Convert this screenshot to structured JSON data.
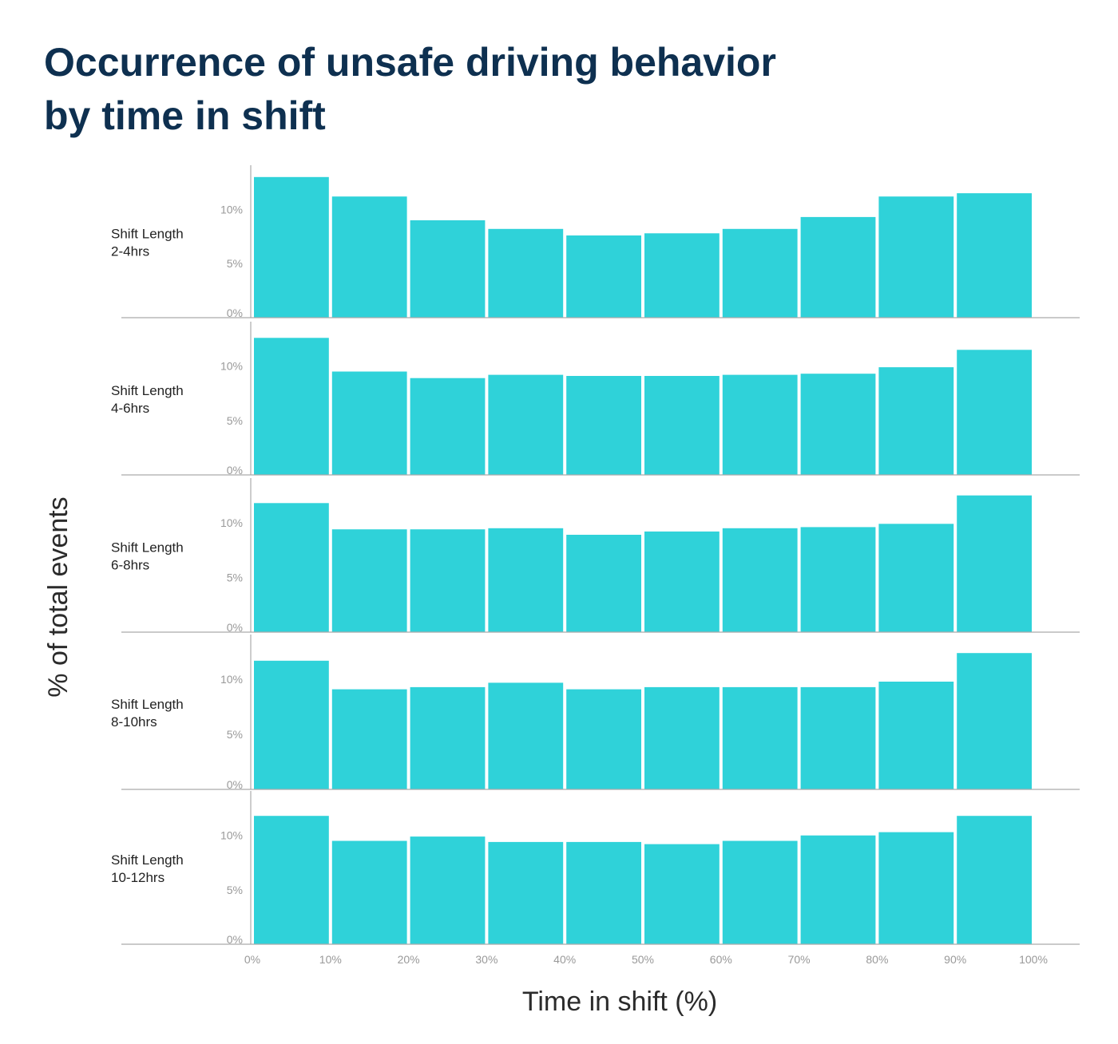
{
  "title_lines": [
    "Occurrence of unsafe driving behavior",
    "by time in shift"
  ],
  "colors": {
    "bar": "#2fd2d9",
    "title": "#0e3050",
    "axis": "#aaaaaa",
    "tick": "#999999"
  },
  "chart_data": {
    "type": "bar",
    "title": "Occurrence of unsafe driving behavior by time in shift",
    "xlabel": "Time in shift (%)",
    "ylabel": "% of total events",
    "x_ticks": [
      "0%",
      "10%",
      "20%",
      "30%",
      "40%",
      "50%",
      "60%",
      "70%",
      "80%",
      "90%",
      "100%"
    ],
    "y_ticks": [
      "0%",
      "5%",
      "10%"
    ],
    "y_tick_values": [
      0,
      5,
      10
    ],
    "ylim": [
      0,
      13.5
    ],
    "categories": [
      "0-10%",
      "10-20%",
      "20-30%",
      "30-40%",
      "40-50%",
      "50-60%",
      "60-70%",
      "70-80%",
      "80-90%",
      "90-100%"
    ],
    "series": [
      {
        "name": "Shift Length 2-4hrs",
        "label_lines": [
          "Shift Length",
          "2-4hrs"
        ],
        "values": [
          13.0,
          11.2,
          9.0,
          8.2,
          7.6,
          7.8,
          8.2,
          9.3,
          11.2,
          11.5
        ]
      },
      {
        "name": "Shift Length 4-6hrs",
        "label_lines": [
          "Shift Length",
          "4-6hrs"
        ],
        "values": [
          12.6,
          9.5,
          8.9,
          9.2,
          9.1,
          9.1,
          9.2,
          9.3,
          9.9,
          11.5
        ]
      },
      {
        "name": "Shift Length 6-8hrs",
        "label_lines": [
          "Shift Length",
          "6-8hrs"
        ],
        "values": [
          11.8,
          9.4,
          9.4,
          9.5,
          8.9,
          9.2,
          9.5,
          9.6,
          9.9,
          12.5
        ]
      },
      {
        "name": "Shift Length 8-10hrs",
        "label_lines": [
          "Shift Length",
          "8-10hrs"
        ],
        "values": [
          11.7,
          9.1,
          9.3,
          9.7,
          9.1,
          9.3,
          9.3,
          9.3,
          9.8,
          12.4
        ]
      },
      {
        "name": "Shift Length 10-12hrs",
        "label_lines": [
          "Shift Length",
          "10-12hrs"
        ],
        "values": [
          11.8,
          9.5,
          9.9,
          9.4,
          9.4,
          9.2,
          9.5,
          10.0,
          10.3,
          11.8
        ]
      }
    ]
  }
}
